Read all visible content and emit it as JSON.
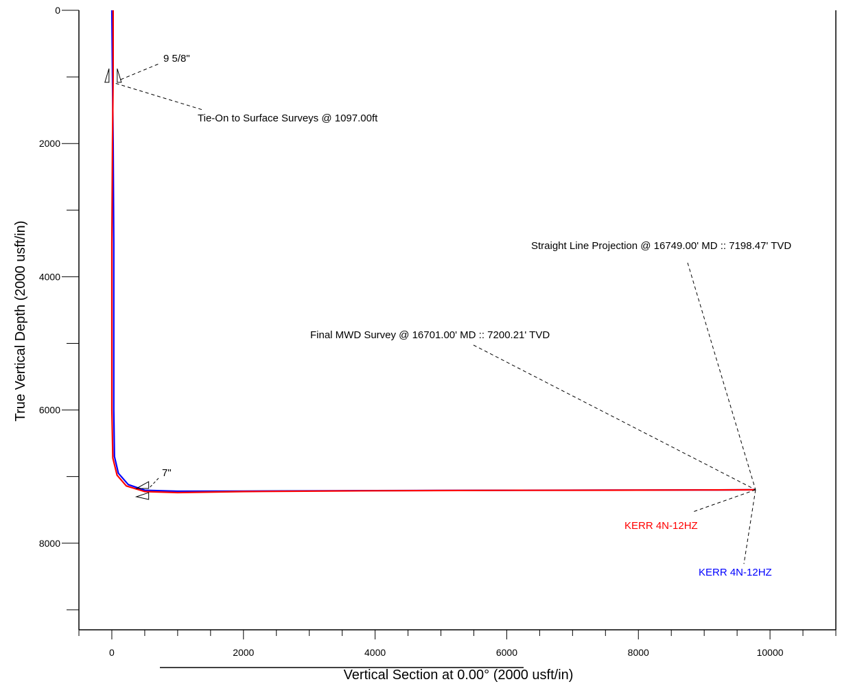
{
  "chart_data": {
    "type": "line",
    "title": "",
    "xlabel": "Vertical Section at 0.00° (2000 usft/in)",
    "ylabel": "True Vertical Depth (2000 usft/in)",
    "xlim": [
      -500,
      11000
    ],
    "ylim": [
      9300,
      0
    ],
    "x_major_ticks": [
      0,
      2000,
      4000,
      6000,
      8000,
      10000
    ],
    "x_minor_step": 500,
    "y_major_ticks": [
      0,
      2000,
      4000,
      6000,
      8000
    ],
    "y_minor_step": 1000,
    "series": [
      {
        "name": "KERR 4N-12HZ",
        "color": "#0000ff",
        "x": [
          0,
          10,
          20,
          30,
          30,
          40,
          100,
          250,
          500,
          1000,
          2000,
          4000,
          6000,
          8000,
          9200,
          9780
        ],
        "y": [
          0,
          1000,
          2000,
          3500,
          6000,
          6700,
          6950,
          7120,
          7205,
          7220,
          7218,
          7210,
          7205,
          7202,
          7200,
          7198
        ]
      },
      {
        "name": "KERR 4N-12HZ",
        "color": "#ff0000",
        "x": [
          20,
          20,
          10,
          0,
          0,
          15,
          80,
          220,
          500,
          1000,
          2000,
          4000,
          6000,
          8000,
          9200,
          9780
        ],
        "y": [
          0,
          1000,
          2000,
          3500,
          6000,
          6720,
          6980,
          7140,
          7225,
          7240,
          7225,
          7212,
          7206,
          7203,
          7200,
          7198
        ]
      }
    ],
    "casings": [
      {
        "label": "9 5/8\"",
        "x": 30,
        "tvd": 1040
      },
      {
        "label": "7\"",
        "x": 560,
        "tvd": 7220
      }
    ],
    "annotations": [
      {
        "text": "Tie-On to Surface Surveys @ 1097.00ft",
        "x": 60,
        "tvd": 1097
      },
      {
        "text": "Straight Line Projection @ 16749.00' MD :: 7198.47' TVD",
        "x": 9780,
        "tvd": 7198
      },
      {
        "text": "Final MWD Survey @ 16701.00' MD :: 7200.21' TVD",
        "x": 9780,
        "tvd": 7200
      }
    ]
  }
}
